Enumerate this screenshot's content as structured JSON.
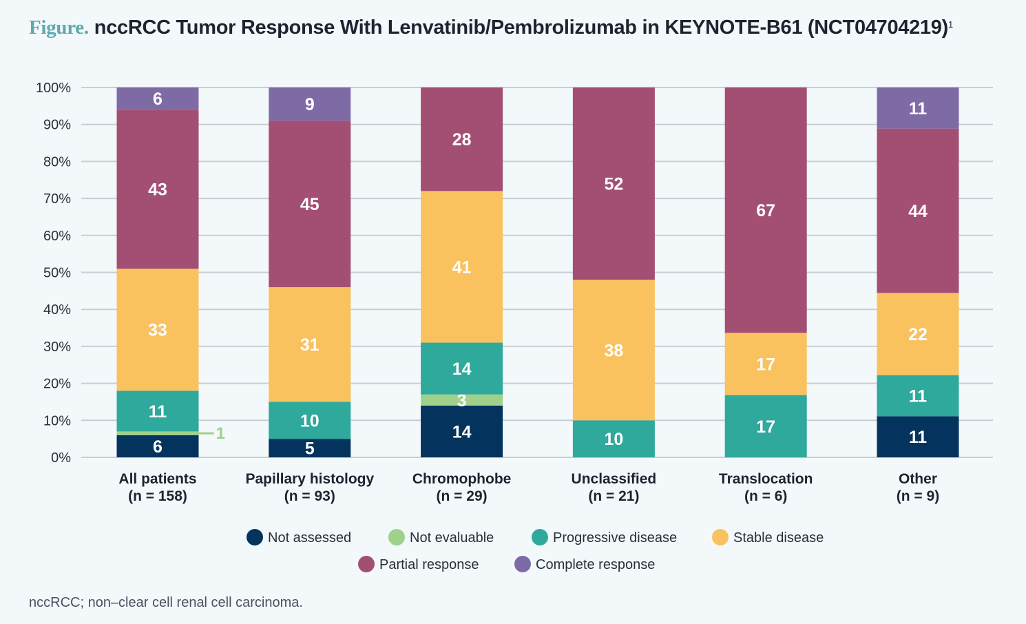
{
  "title": {
    "prefix": "Figure.",
    "text": "nccRCC Tumor Response With Lenvatinib/Pembrolizumab in KEYNOTE-B61 (NCT04704219)",
    "superscript": "1"
  },
  "footnote": "nccRCC; non–clear cell renal cell carcinoma.",
  "chart_data": {
    "type": "bar",
    "stacked": true,
    "ylim": [
      0,
      100
    ],
    "yticks": [
      "0%",
      "10%",
      "20%",
      "30%",
      "40%",
      "50%",
      "60%",
      "70%",
      "80%",
      "90%",
      "100%"
    ],
    "grid": true,
    "legend_position": "bottom",
    "categories": [
      [
        "All patients",
        "(n = 158)"
      ],
      [
        "Papillary histology",
        "(n = 93)"
      ],
      [
        "Chromophobe",
        "(n = 29)"
      ],
      [
        "Unclassified",
        "(n = 21)"
      ],
      [
        "Translocation",
        "(n = 6)"
      ],
      [
        "Other",
        "(n = 9)"
      ]
    ],
    "series": [
      {
        "name": "Not assessed",
        "color": "#04335e",
        "values": [
          6,
          5,
          14,
          0,
          0,
          11
        ]
      },
      {
        "name": "Not evaluable",
        "color": "#9fd18a",
        "values": [
          1,
          0,
          3,
          0,
          0,
          0
        ]
      },
      {
        "name": "Progressive disease",
        "color": "#2ea99b",
        "values": [
          11,
          10,
          14,
          10,
          17,
          11
        ]
      },
      {
        "name": "Stable disease",
        "color": "#f9c25f",
        "values": [
          33,
          31,
          41,
          38,
          17,
          22
        ]
      },
      {
        "name": "Partial response",
        "color": "#a34f74",
        "values": [
          43,
          45,
          28,
          52,
          67,
          44
        ]
      },
      {
        "name": "Complete response",
        "color": "#7e6ba6",
        "values": [
          6,
          9,
          0,
          0,
          0,
          11
        ]
      }
    ]
  }
}
